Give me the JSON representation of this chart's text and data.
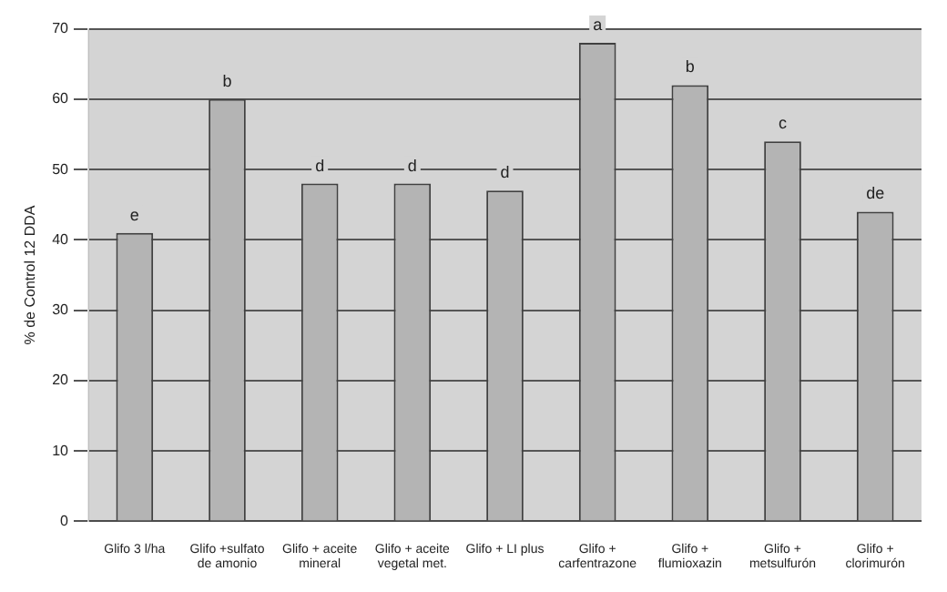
{
  "chart_data": {
    "type": "bar",
    "ylabel": "% de Control 12 DDA",
    "categories": [
      "Glifo 3 l/ha",
      "Glifo +sulfato\nde amonio",
      "Glifo + aceite\nmineral",
      "Glifo + aceite\nvegetal met.",
      "Glifo + LI plus",
      "Glifo +\ncarfentrazone",
      "Glifo +\nflumioxazin",
      "Glifo +\nmetsulfurón",
      "Glifo +\nclorimurón"
    ],
    "values": [
      41,
      60,
      48,
      48,
      47,
      68,
      62,
      54,
      44
    ],
    "color": "#b4b4b4",
    "ylim": [
      0,
      70
    ],
    "yticks": [
      0,
      10,
      20,
      30,
      40,
      50,
      60,
      70
    ],
    "grid": "y",
    "legend": false,
    "annotations": [
      {
        "text": "e",
        "x": "Glifo 3 l/ha",
        "y": 41
      },
      {
        "text": "b",
        "x": "Glifo +sulfato\nde amonio",
        "y": 60
      },
      {
        "text": "d",
        "x": "Glifo + aceite\nmineral",
        "y": 48
      },
      {
        "text": "d",
        "x": "Glifo + aceite\nvegetal met.",
        "y": 48
      },
      {
        "text": "d",
        "x": "Glifo + LI plus",
        "y": 47
      },
      {
        "text": "a",
        "x": "Glifo +\ncarfentrazone",
        "y": 68
      },
      {
        "text": "b",
        "x": "Glifo +\nflumioxazin",
        "y": 62
      },
      {
        "text": "c",
        "x": "Glifo +\nmetsulfurón",
        "y": 54
      },
      {
        "text": "de",
        "x": "Glifo +\nclorimurón",
        "y": 44
      }
    ]
  }
}
